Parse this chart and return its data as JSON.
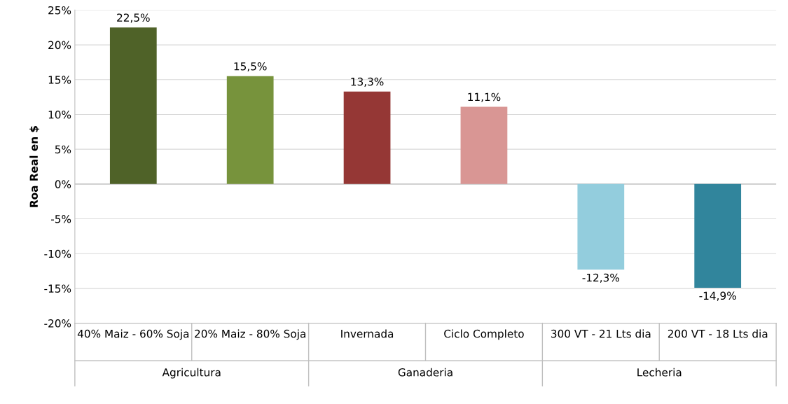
{
  "chart_data": {
    "type": "bar",
    "ylabel": "Roa Real en $",
    "categories": [
      "40% Maiz - 60% Soja",
      "20% Maiz - 80% Soja",
      "Invernada",
      "Ciclo Completo",
      "300 VT - 21 Lts dia",
      "200 VT - 18 Lts dia"
    ],
    "values": [
      22.5,
      15.5,
      13.3,
      11.1,
      -12.3,
      -14.9
    ],
    "colors": [
      "#4f6228",
      "#77933c",
      "#953735",
      "#d99694",
      "#93cddd",
      "#31859c"
    ],
    "value_labels": [
      "22,5%",
      "15,5%",
      "13,3%",
      "11,1%",
      "-12,3%",
      "-14,9%"
    ],
    "ylim": [
      -20,
      25
    ],
    "yticks": [
      {
        "value": -20,
        "label": "-20%"
      },
      {
        "value": -15,
        "label": "-15%"
      },
      {
        "value": -10,
        "label": "-10%"
      },
      {
        "value": -5,
        "label": "-5%"
      },
      {
        "value": 0,
        "label": "0%"
      },
      {
        "value": 5,
        "label": "5%"
      },
      {
        "value": 10,
        "label": "10%"
      },
      {
        "value": 15,
        "label": "15%"
      },
      {
        "value": 20,
        "label": "20%"
      },
      {
        "value": 25,
        "label": "25%"
      }
    ],
    "grid": "y",
    "annotations": [
      "Agricultura",
      "Ganaderia",
      "Lecheria"
    ]
  }
}
